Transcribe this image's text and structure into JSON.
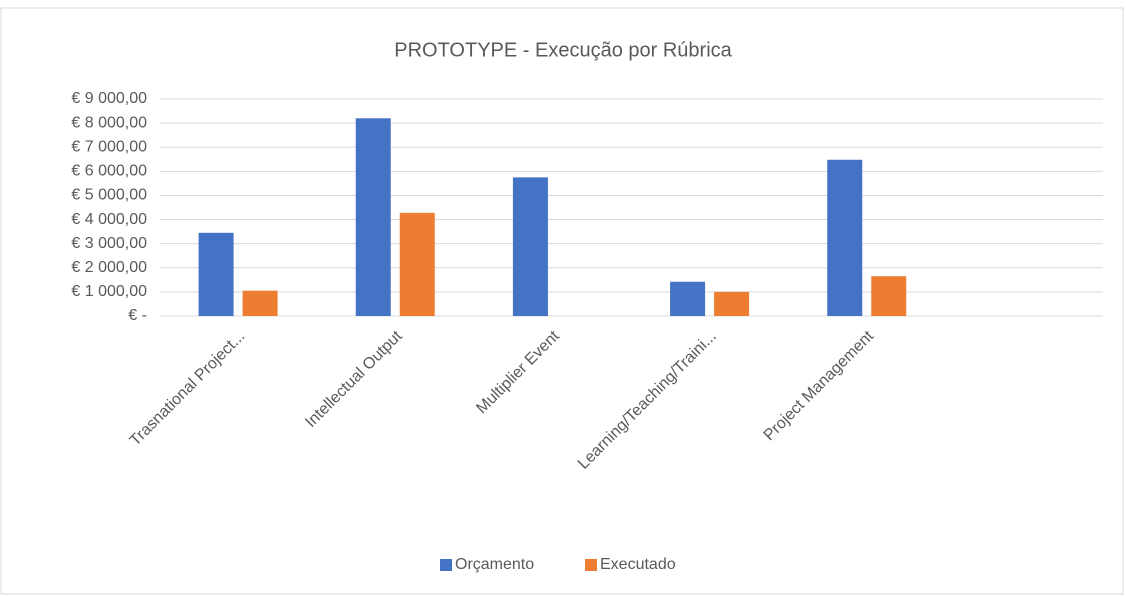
{
  "chart_data": {
    "type": "bar",
    "title": "PROTOTYPE - Execução por Rúbrica",
    "categories": [
      "Trasnational Project...",
      "Intellectual Output",
      "Multiplier Event",
      "Learning/Teaching/Traini...",
      "Project Management",
      null
    ],
    "series": [
      {
        "name": "Orçamento",
        "color": "#4472c4",
        "values": [
          3450,
          8200,
          5750,
          1420,
          6480,
          null
        ]
      },
      {
        "name": "Executado",
        "color": "#ed7d31",
        "values": [
          1050,
          4280,
          0,
          1000,
          1650,
          null
        ]
      }
    ],
    "ylim": [
      0,
      9000
    ],
    "yticks": [
      {
        "value": 0,
        "label": "€ -"
      },
      {
        "value": 1000,
        "label": "€ 1 000,00"
      },
      {
        "value": 2000,
        "label": "€ 2 000,00"
      },
      {
        "value": 3000,
        "label": "€ 3 000,00"
      },
      {
        "value": 4000,
        "label": "€ 4 000,00"
      },
      {
        "value": 5000,
        "label": "€ 5 000,00"
      },
      {
        "value": 6000,
        "label": "€ 6 000,00"
      },
      {
        "value": 7000,
        "label": "€ 7 000,00"
      },
      {
        "value": 8000,
        "label": "€ 8 000,00"
      },
      {
        "value": 9000,
        "label": "€ 9 000,00"
      }
    ],
    "grid": true,
    "legend": "bottom"
  }
}
